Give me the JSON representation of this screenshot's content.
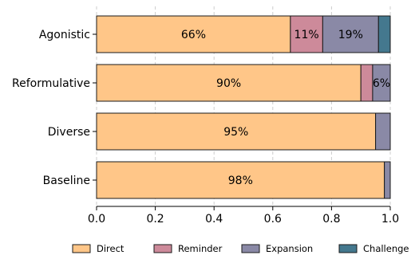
{
  "chart_data": {
    "type": "bar",
    "orientation": "horizontal",
    "stacked": true,
    "categories": [
      "Agonistic",
      "Reformulative",
      "Diverse",
      "Baseline"
    ],
    "series": [
      {
        "name": "Direct",
        "color": "#FFC688",
        "values": [
          0.66,
          0.9,
          0.95,
          0.98
        ]
      },
      {
        "name": "Reminder",
        "color": "#CD8A9A",
        "values": [
          0.11,
          0.04,
          0.0,
          0.0
        ]
      },
      {
        "name": "Expansion",
        "color": "#8A89A6",
        "values": [
          0.19,
          0.06,
          0.05,
          0.02
        ]
      },
      {
        "name": "Challenge",
        "color": "#44788E",
        "values": [
          0.04,
          0.0,
          0.0,
          0.0
        ]
      }
    ],
    "data_labels": [
      {
        "category": "Agonistic",
        "series": "Direct",
        "text": "66%"
      },
      {
        "category": "Agonistic",
        "series": "Reminder",
        "text": "11%"
      },
      {
        "category": "Agonistic",
        "series": "Expansion",
        "text": "19%"
      },
      {
        "category": "Reformulative",
        "series": "Direct",
        "text": "90%"
      },
      {
        "category": "Reformulative",
        "series": "Expansion",
        "text": "6%"
      },
      {
        "category": "Diverse",
        "series": "Direct",
        "text": "95%"
      },
      {
        "category": "Baseline",
        "series": "Direct",
        "text": "98%"
      }
    ],
    "xticks": [
      0.0,
      0.2,
      0.4,
      0.6,
      0.8,
      1.0
    ],
    "xtick_labels": [
      "0.0",
      "0.2",
      "0.4",
      "0.6",
      "0.8",
      "1.0"
    ],
    "xlim": [
      0,
      1
    ],
    "grid": "vertical dashed",
    "legend_position": "bottom",
    "title": "",
    "xlabel": "",
    "ylabel": ""
  }
}
